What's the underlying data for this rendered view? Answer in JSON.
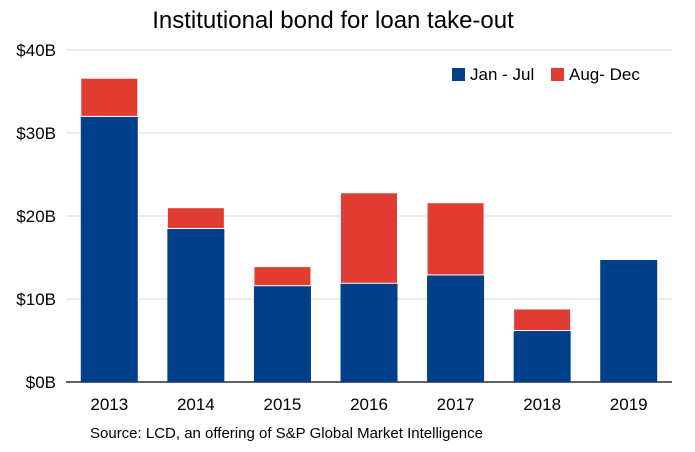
{
  "chart_data": {
    "type": "bar",
    "stacked": true,
    "title": "Institutional bond for loan take-out",
    "source": "Source: LCD, an offering of S&P Global Market Intelligence",
    "categories": [
      "2013",
      "2014",
      "2015",
      "2016",
      "2017",
      "2018",
      "2019"
    ],
    "series": [
      {
        "name": "Jan - Jul",
        "color": "#003f8a",
        "values": [
          32.0,
          18.5,
          11.6,
          11.9,
          12.9,
          6.2,
          14.7
        ]
      },
      {
        "name": "Aug- Dec",
        "color": "#e03c31",
        "values": [
          4.6,
          2.5,
          2.3,
          10.9,
          8.7,
          2.6,
          0
        ]
      }
    ],
    "yticks": [
      "$0B",
      "$10B",
      "$20B",
      "$30B",
      "$40B"
    ],
    "ylim": [
      0,
      40
    ],
    "grid": true,
    "legend": "top-right"
  }
}
